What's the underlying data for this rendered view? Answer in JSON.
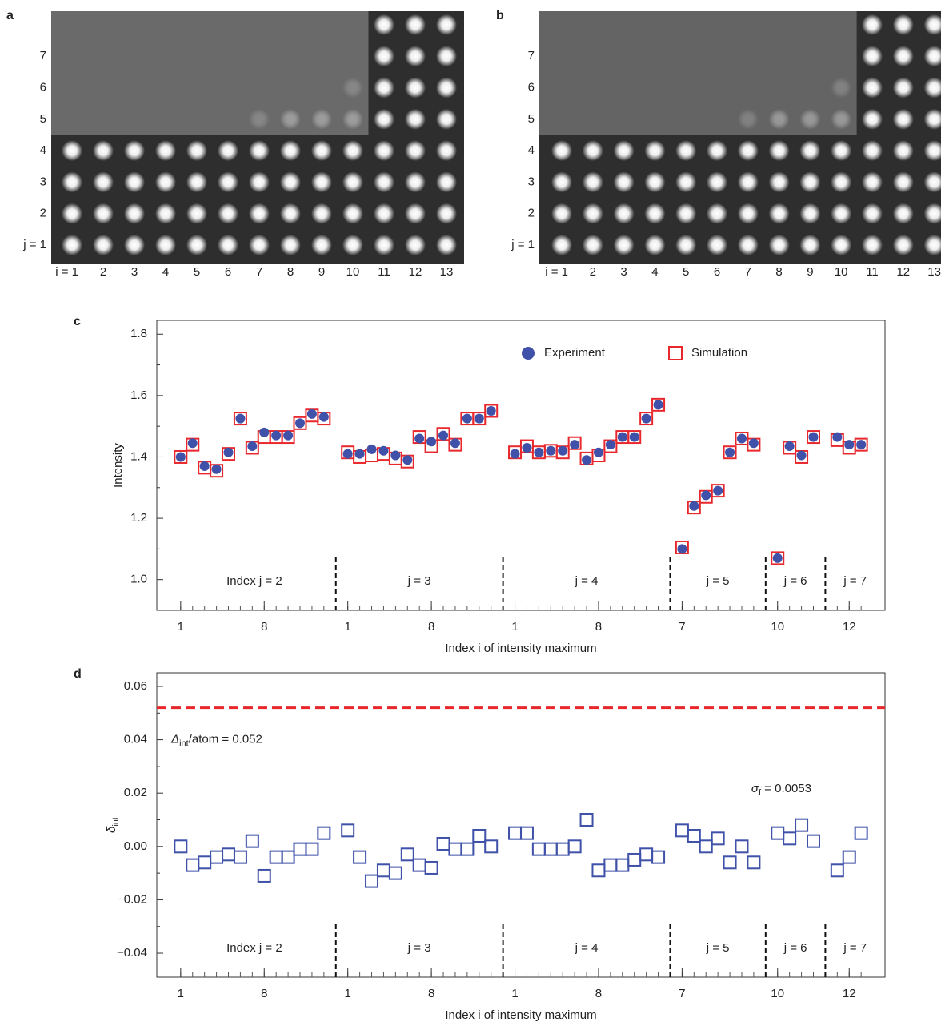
{
  "chart_data": [
    {
      "type": "image",
      "panel_label": "a",
      "x_labels": [
        "i = 1",
        "2",
        "3",
        "4",
        "5",
        "6",
        "7",
        "8",
        "9",
        "10",
        "11",
        "12",
        "13"
      ],
      "y_labels": [
        "j = 1",
        "2",
        "3",
        "4",
        "5",
        "6",
        "7"
      ]
    },
    {
      "type": "image",
      "panel_label": "b",
      "x_labels": [
        "i = 1",
        "2",
        "3",
        "4",
        "5",
        "6",
        "7",
        "8",
        "9",
        "10",
        "11",
        "12",
        "13"
      ],
      "y_labels": [
        "j = 1",
        "2",
        "3",
        "4",
        "5",
        "6",
        "7"
      ]
    },
    {
      "type": "scatter",
      "panel_label": "c",
      "ylabel": "Intensity",
      "xlabel": "Index i of intensity maximum",
      "legend": "top-right",
      "x": [
        1,
        2,
        3,
        4,
        5,
        6,
        7,
        8,
        9,
        10,
        11,
        12,
        13,
        15,
        16,
        17,
        18,
        19,
        20,
        21,
        22,
        23,
        24,
        25,
        26,
        27,
        29,
        30,
        31,
        32,
        33,
        34,
        35,
        36,
        37,
        38,
        39,
        40,
        41,
        43,
        44,
        45,
        46,
        47,
        48,
        49,
        51,
        52,
        53,
        54,
        56,
        57,
        58
      ],
      "xlim": [
        -1,
        60
      ],
      "xticks": [
        1,
        8,
        {
          "value": 15,
          "label": "1"
        },
        {
          "value": 22,
          "label": "8"
        },
        {
          "value": 29,
          "label": "1"
        },
        {
          "value": 36,
          "label": "8"
        },
        {
          "value": 43,
          "label": "7"
        },
        {
          "value": 51,
          "label": "10"
        },
        {
          "value": 57,
          "label": "12"
        }
      ],
      "ylim": [
        0.9,
        1.845
      ],
      "yticks": [
        {
          "value": 1,
          "label": "1.0"
        },
        1.2,
        1.4,
        1.6,
        1.8
      ],
      "yminor_ticks": [
        0.9,
        1.1,
        1.3,
        1.5,
        1.7
      ],
      "dividers": [
        14,
        28,
        42,
        50,
        55
      ],
      "segment_labels": [
        "Index j = 2",
        "j = 3",
        "j = 4",
        "j = 5",
        "j = 6",
        "j = 7"
      ],
      "series": [
        {
          "name": "Simulation",
          "color": "#e8282d",
          "marker": "square",
          "values": [
            1.4,
            1.44,
            1.365,
            1.355,
            1.41,
            1.525,
            1.43,
            1.465,
            1.465,
            1.465,
            1.51,
            1.535,
            1.525,
            1.415,
            1.4,
            1.405,
            1.41,
            1.395,
            1.385,
            1.465,
            1.435,
            1.475,
            1.44,
            1.525,
            1.525,
            1.55,
            1.415,
            1.435,
            1.415,
            1.42,
            1.415,
            1.445,
            1.395,
            1.405,
            1.435,
            1.465,
            1.465,
            1.525,
            1.57,
            1.105,
            1.235,
            1.27,
            1.29,
            1.415,
            1.46,
            1.44,
            1.07,
            1.43,
            1.4,
            1.465,
            1.455,
            1.43,
            1.44
          ]
        },
        {
          "name": "Experiment",
          "color": "#3f51a8",
          "marker": "circle",
          "values": [
            1.4,
            1.445,
            1.37,
            1.36,
            1.415,
            1.525,
            1.435,
            1.48,
            1.47,
            1.47,
            1.51,
            1.54,
            1.53,
            1.41,
            1.41,
            1.425,
            1.42,
            1.405,
            1.39,
            1.46,
            1.45,
            1.47,
            1.445,
            1.525,
            1.525,
            1.55,
            1.41,
            1.43,
            1.415,
            1.42,
            1.42,
            1.44,
            1.39,
            1.415,
            1.44,
            1.465,
            1.465,
            1.525,
            1.57,
            1.1,
            1.24,
            1.275,
            1.29,
            1.415,
            1.46,
            1.445,
            1.07,
            1.435,
            1.405,
            1.465,
            1.465,
            1.44,
            1.44
          ]
        }
      ]
    },
    {
      "type": "scatter",
      "panel_label": "d",
      "ylabel": {
        "symbol": "δ",
        "subscript": "int"
      },
      "xlabel": "Index i of intensity maximum",
      "x": [
        1,
        2,
        3,
        4,
        5,
        6,
        7,
        8,
        9,
        10,
        11,
        12,
        13,
        15,
        16,
        17,
        18,
        19,
        20,
        21,
        22,
        23,
        24,
        25,
        26,
        27,
        29,
        30,
        31,
        32,
        33,
        34,
        35,
        36,
        37,
        38,
        39,
        40,
        41,
        43,
        44,
        45,
        46,
        47,
        48,
        49,
        51,
        52,
        53,
        54,
        56,
        57,
        58
      ],
      "xlim": [
        -1,
        60
      ],
      "xticks": [
        1,
        8,
        {
          "value": 15,
          "label": "1"
        },
        {
          "value": 22,
          "label": "8"
        },
        {
          "value": 29,
          "label": "1"
        },
        {
          "value": 36,
          "label": "8"
        },
        {
          "value": 43,
          "label": "7"
        },
        {
          "value": 51,
          "label": "10"
        },
        {
          "value": 57,
          "label": "12"
        }
      ],
      "ylim": [
        -0.049,
        0.0651
      ],
      "yticks": [
        {
          "value": -0.04,
          "label": "−0.04"
        },
        {
          "value": -0.02,
          "label": "−0.02"
        },
        {
          "value": 0,
          "label": "0.00"
        },
        0.02,
        0.04,
        0.06
      ],
      "yminor_ticks": [
        -0.03,
        -0.01,
        0.01,
        0.03,
        0.05
      ],
      "dividers": [
        14,
        28,
        42,
        50,
        55
      ],
      "segment_labels": [
        "Index j = 2",
        "j = 3",
        "j = 4",
        "j = 5",
        "j = 6",
        "j = 7"
      ],
      "hline": {
        "value": 0.052,
        "color": "#e8282d",
        "symbol": "Δ",
        "subscript": "int",
        "text": "/atom = 0.052"
      },
      "annotation": {
        "symbol": "σ",
        "subscript": "f",
        "text": " = 0.0053",
        "color": "#3f51a8"
      },
      "series": [
        {
          "color": "#3f51a8",
          "marker": "square",
          "values": [
            0.0,
            -0.007,
            -0.006,
            -0.004,
            -0.003,
            -0.004,
            0.002,
            -0.011,
            -0.004,
            -0.004,
            -0.001,
            -0.001,
            0.005,
            0.006,
            -0.004,
            -0.013,
            -0.009,
            -0.01,
            -0.003,
            -0.007,
            -0.008,
            0.001,
            -0.001,
            -0.001,
            0.004,
            0.0,
            0.005,
            0.005,
            -0.001,
            -0.001,
            -0.001,
            0.0,
            0.01,
            -0.009,
            -0.007,
            -0.007,
            -0.005,
            -0.003,
            -0.004,
            0.006,
            0.004,
            0.0,
            0.003,
            -0.006,
            0.0,
            -0.006,
            0.005,
            0.003,
            0.008,
            0.002,
            -0.009,
            -0.004,
            0.005
          ]
        }
      ]
    }
  ]
}
